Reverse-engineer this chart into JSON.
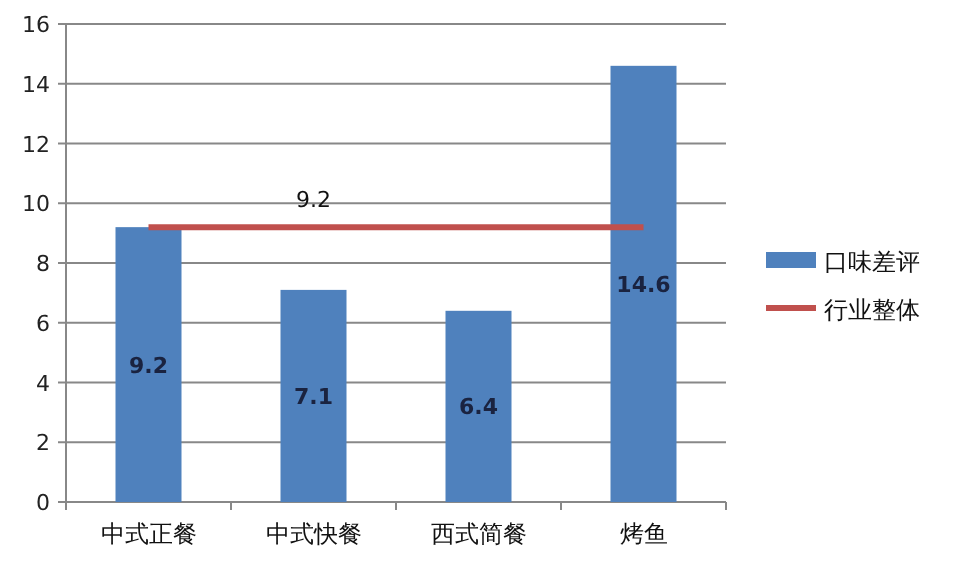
{
  "chart_data": {
    "type": "bar",
    "categories": [
      "中式正餐",
      "中式快餐",
      "西式简餐",
      "烤鱼"
    ],
    "series": [
      {
        "name": "口味差评",
        "color": "#4f81bd",
        "values": [
          9.2,
          7.1,
          6.4,
          14.6
        ],
        "value_labels": [
          "9.2",
          "7.1",
          "6.4",
          "14.6"
        ]
      },
      {
        "name": "行业整体",
        "type": "line",
        "color": "#c0504d",
        "values": [
          9.2,
          9.2,
          9.2,
          9.2
        ],
        "value_labels": [
          null,
          "9.2",
          null,
          null
        ]
      }
    ],
    "ylim": [
      0,
      16
    ],
    "yticks": [
      0,
      2,
      4,
      6,
      8,
      10,
      12,
      14,
      16
    ],
    "grid": "y",
    "legend": "right"
  }
}
